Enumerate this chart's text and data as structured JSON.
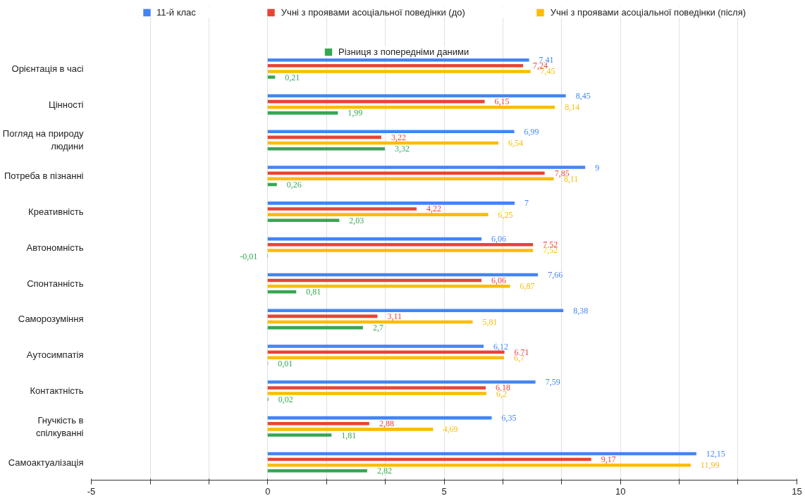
{
  "chart_data": {
    "type": "bar",
    "orientation": "horizontal",
    "legend": "top",
    "grid": "x",
    "categories": [
      "Орієнтація в часі",
      "Цінності",
      "Погляд на природу людини",
      "Потреба в пізнанні",
      "Креативність",
      "Автономність",
      "Спонтанність",
      "Саморозуміння",
      "Аутосимпатія",
      "Контактність",
      "Гнучкість в спілкуванні",
      "Самоактуалізація"
    ],
    "xlim": [
      -5,
      15
    ],
    "xticks": [
      -5,
      {
        "value": -3.33,
        "label": null
      },
      {
        "value": -1.67,
        "label": null
      },
      0,
      {
        "value": 1.67,
        "label": null
      },
      {
        "value": 3.33,
        "label": null
      },
      5,
      {
        "value": 6.67,
        "label": null
      },
      {
        "value": 8.33,
        "label": null
      },
      10,
      {
        "value": 11.67,
        "label": null
      },
      {
        "value": 13.33,
        "label": null
      },
      15
    ],
    "series": [
      {
        "name": "11-й клас",
        "color": "#4285f4",
        "values": [
          7.41,
          8.45,
          6.99,
          9,
          7,
          6.06,
          7.66,
          8.38,
          6.12,
          7.59,
          6.35,
          12.15
        ],
        "value_labels": [
          "7,41",
          "8,45",
          "6,99",
          "9",
          "7",
          "6,06",
          "7,66",
          "8,38",
          "6,12",
          "7,59",
          "6,35",
          "12,15"
        ]
      },
      {
        "name": "Учні з проявами асоціальної поведінки (до)",
        "color": "#ea4335",
        "values": [
          7.24,
          6.15,
          3.22,
          7.85,
          4.22,
          7.52,
          6.06,
          3.11,
          6.71,
          6.18,
          2.88,
          9.17
        ],
        "value_labels": [
          "7,24",
          "6,15",
          "3,22",
          "7,85",
          "4,22",
          "7,52",
          "6,06",
          "3,11",
          "6,71",
          "6,18",
          "2,88",
          "9,17"
        ]
      },
      {
        "name": "Учні з проявами асоціальної поведінки (після)",
        "color": "#fbbc04",
        "values": [
          7.45,
          8.14,
          6.54,
          8.11,
          6.25,
          7.52,
          6.87,
          5.81,
          6.7,
          6.2,
          4.69,
          11.99
        ],
        "value_labels": [
          "7,45",
          "8,14",
          "6,54",
          "8,11",
          "6,25",
          "7,52",
          "6,87",
          "5,81",
          "6,7",
          "6,2",
          "4,69",
          "11,99"
        ]
      },
      {
        "name": "Різниця з попередніми даними",
        "color": "#34a853",
        "values": [
          0.21,
          1.99,
          3.32,
          0.26,
          2.03,
          -0.01,
          0.81,
          2.7,
          0.01,
          0.02,
          1.81,
          2.82
        ],
        "value_labels": [
          "0,21",
          "1,99",
          "3,32",
          "0,26",
          "2,03",
          "-0,01",
          "0,81",
          "2,7",
          "0,01",
          "0,02",
          "1,81",
          "2,82"
        ]
      }
    ]
  }
}
